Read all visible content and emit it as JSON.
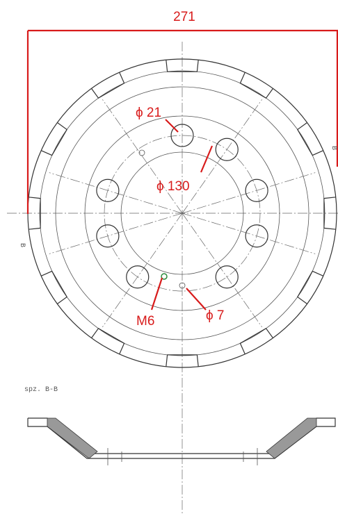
{
  "dimensions": {
    "overall_diameter": "271",
    "hole_diameter": "ϕ 21",
    "bolt_circle": "ϕ 130",
    "thread": "M6",
    "small_hole": "ϕ 7"
  },
  "section": {
    "marker_top": "B",
    "marker_left": "B",
    "caption": "spz. B-B"
  }
}
